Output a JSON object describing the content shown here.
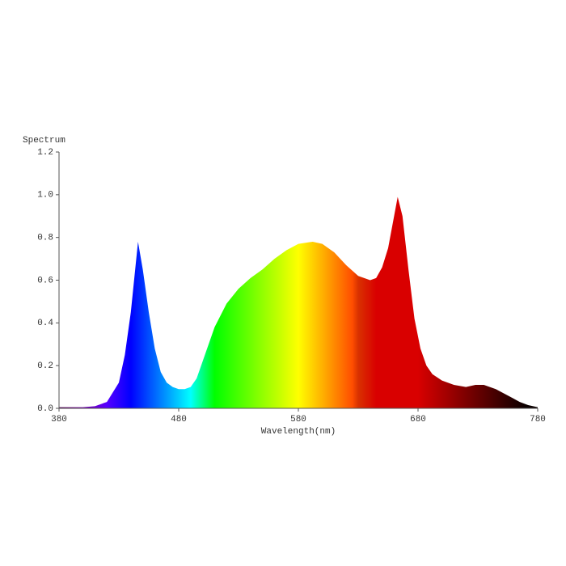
{
  "chart_data": {
    "type": "area",
    "y_label": "Spectrum",
    "x_label": "Wavelength(nm)",
    "x": [
      380,
      400,
      410,
      420,
      430,
      435,
      440,
      446,
      450,
      455,
      460,
      465,
      470,
      475,
      480,
      485,
      490,
      495,
      500,
      505,
      510,
      520,
      530,
      540,
      550,
      560,
      570,
      580,
      592,
      600,
      610,
      620,
      630,
      640,
      645,
      650,
      655,
      660,
      663,
      667,
      672,
      677,
      682,
      687,
      692,
      700,
      710,
      720,
      728,
      735,
      745,
      755,
      765,
      772,
      780
    ],
    "values": [
      0.005,
      0.005,
      0.01,
      0.03,
      0.12,
      0.25,
      0.45,
      0.78,
      0.65,
      0.45,
      0.28,
      0.17,
      0.12,
      0.1,
      0.09,
      0.09,
      0.1,
      0.14,
      0.22,
      0.3,
      0.38,
      0.49,
      0.56,
      0.61,
      0.65,
      0.7,
      0.74,
      0.77,
      0.78,
      0.77,
      0.73,
      0.67,
      0.62,
      0.6,
      0.61,
      0.66,
      0.75,
      0.9,
      0.99,
      0.9,
      0.65,
      0.42,
      0.28,
      0.2,
      0.16,
      0.13,
      0.11,
      0.1,
      0.11,
      0.11,
      0.09,
      0.06,
      0.03,
      0.015,
      0.005
    ],
    "xlim": [
      380,
      780
    ],
    "ylim": [
      0,
      1.2
    ],
    "xticks": [
      380,
      480,
      580,
      680,
      780
    ],
    "yticks": [
      {
        "value": 0,
        "label": "0.0"
      },
      0.2,
      0.4,
      0.6,
      0.8,
      {
        "value": 1,
        "label": "1.0"
      },
      1.2
    ],
    "grid": false
  }
}
